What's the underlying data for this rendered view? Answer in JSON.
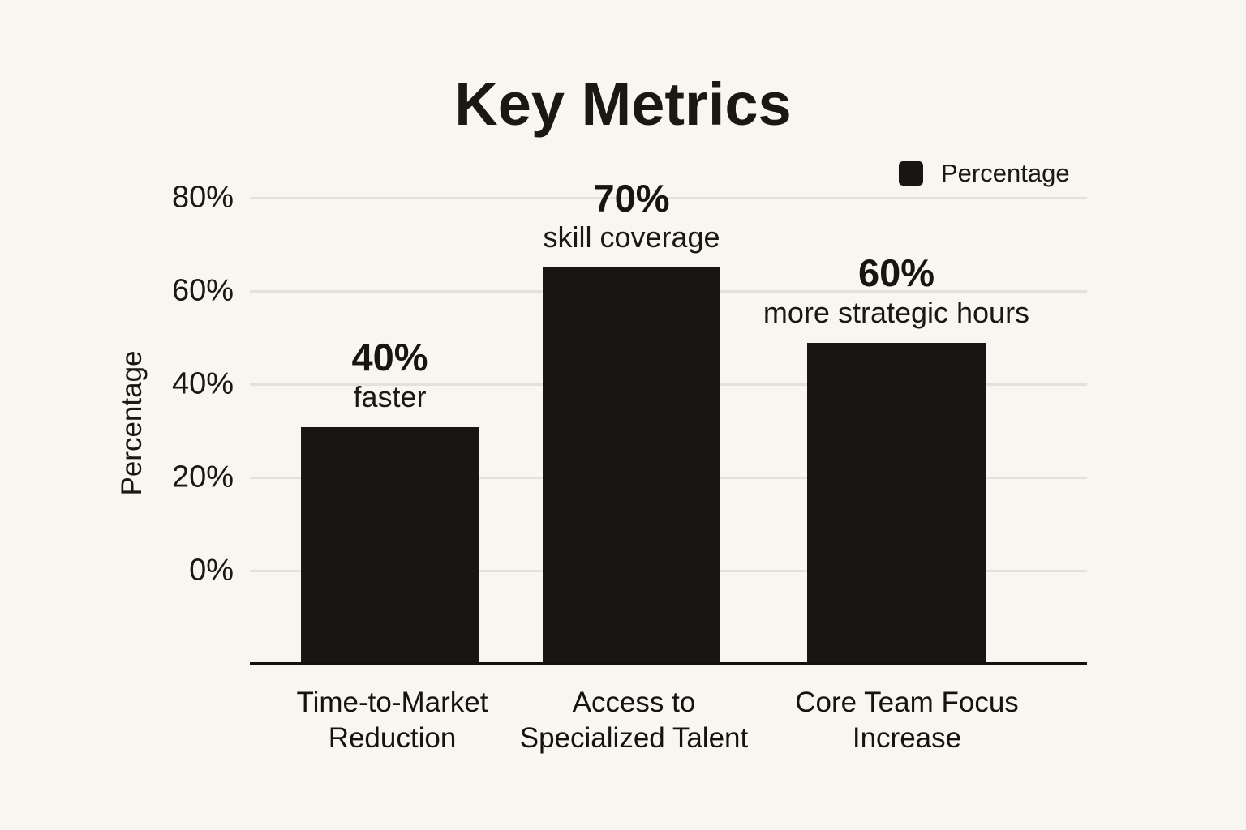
{
  "page": {
    "background_color": "#f8f6f0"
  },
  "chart_data": {
    "type": "bar",
    "title": "Key Metrics",
    "ylabel": "Percentage",
    "xlabel": "",
    "grid": true,
    "legend": {
      "position": "top-right",
      "entries": [
        {
          "label": "Percentage",
          "color": "#191512",
          "swatch": "filled-square"
        }
      ]
    },
    "y_axis": {
      "tick_values": [
        0,
        20,
        40,
        60,
        80
      ],
      "tick_labels": [
        "0%",
        "20%",
        "40%",
        "60%",
        "80%"
      ],
      "axis_range": [
        0,
        80
      ]
    },
    "categories": [
      {
        "line1": "Time-to-Market",
        "line2": "Reduction"
      },
      {
        "line1": "Access to",
        "line2": "Specialized Talent"
      },
      {
        "line1": "Core Team Focus",
        "line2": "Increase"
      }
    ],
    "series": [
      {
        "name": "Percentage",
        "values": [
          40,
          70,
          60
        ]
      }
    ],
    "annotations": [
      {
        "value": "40%",
        "caption": "faster"
      },
      {
        "value": "70%",
        "caption": "skill coverage"
      },
      {
        "value": "60%",
        "caption": "more strategic hours"
      }
    ],
    "bar_color": "#191512",
    "gridline_color": "#e4e1da",
    "axis_line_color": "#13110e",
    "bar_top_pct_as_drawn": [
      30.8,
      65.0,
      48.9
    ],
    "bar_base_pct_as_drawn": -20
  }
}
